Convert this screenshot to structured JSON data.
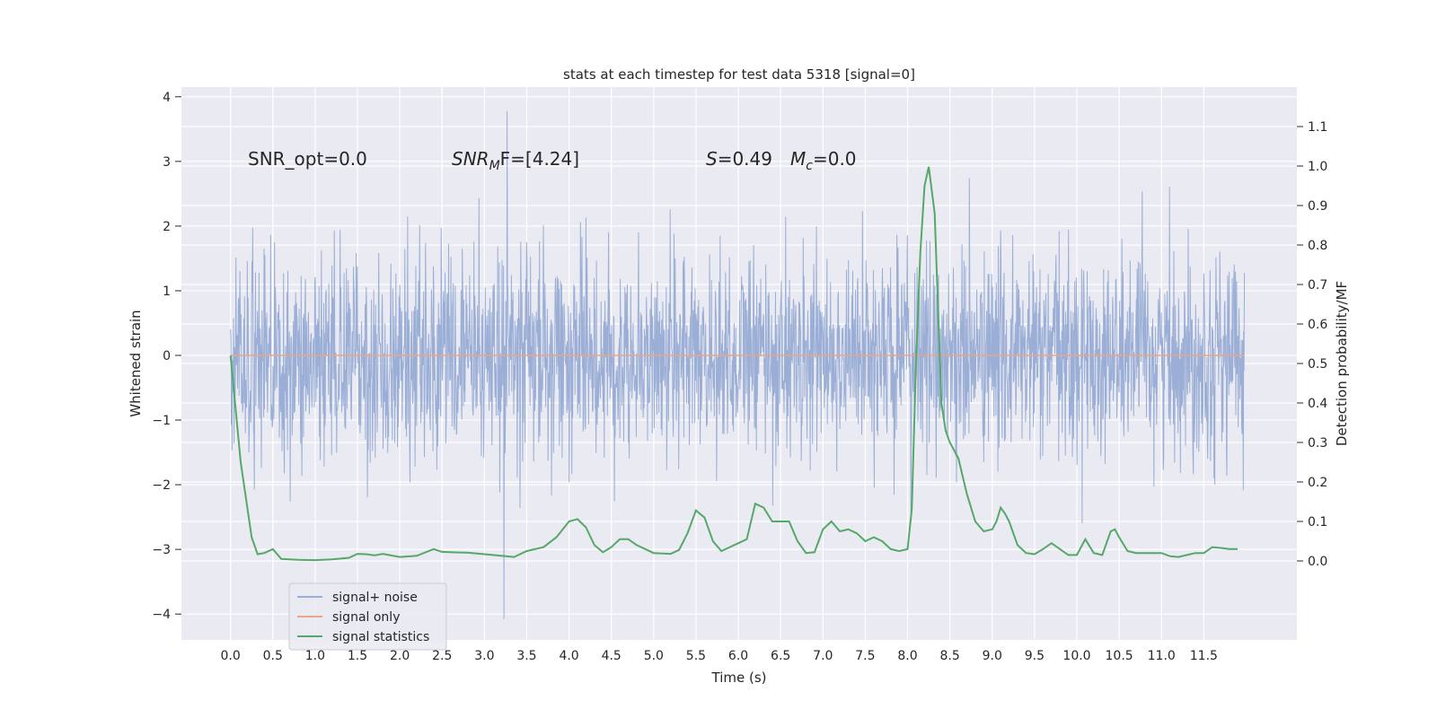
{
  "chart_data": {
    "type": "line",
    "title": "stats at each timestep for test data 5318 [signal=0]",
    "xlabel": "Time (s)",
    "ylabel_left": "Whitened strain",
    "ylabel_right": "Detection probability/MF",
    "xlim": [
      -0.58,
      12.6
    ],
    "ylim_left": [
      -4.4,
      4.15
    ],
    "ylim_right": [
      -0.2,
      1.2
    ],
    "x_ticks": [
      0.0,
      0.5,
      1.0,
      1.5,
      2.0,
      2.5,
      3.0,
      3.5,
      4.0,
      4.5,
      5.0,
      5.5,
      6.0,
      6.5,
      7.0,
      7.5,
      8.0,
      8.5,
      9.0,
      9.5,
      10.0,
      10.5,
      11.0,
      11.5
    ],
    "x_tick_labels": [
      "0.0",
      "0.5",
      "1.0",
      "1.5",
      "2.0",
      "2.5",
      "3.0",
      "3.5",
      "4.0",
      "4.5",
      "5.0",
      "5.5",
      "6.0",
      "6.5",
      "7.0",
      "7.5",
      "8.0",
      "8.5",
      "9.0",
      "9.5",
      "10.0",
      "10.5",
      "11.0",
      "11.5"
    ],
    "y_left_ticks": [
      -4,
      -3,
      -2,
      -1,
      0,
      1,
      2,
      3,
      4
    ],
    "y_left_tick_labels": [
      "−4",
      "−3",
      "−2",
      "−1",
      "0",
      "1",
      "2",
      "3",
      "4"
    ],
    "y_right_ticks": [
      0.0,
      0.1,
      0.2,
      0.3,
      0.4,
      0.5,
      0.6,
      0.7,
      0.8,
      0.9,
      1.0,
      1.1
    ],
    "y_right_tick_labels": [
      "0.0",
      "0.1",
      "0.2",
      "0.3",
      "0.4",
      "0.5",
      "0.6",
      "0.7",
      "0.8",
      "0.9",
      "1.0",
      "1.1"
    ],
    "annotations": {
      "snr_opt": "SNR_opt=0.0",
      "snr_mf_main": "SNR",
      "snr_mf_sub": "M",
      "snr_mf_rest": "F=[4.24]",
      "s_main": "S",
      "s_rest": "=0.49",
      "mc_main": "M",
      "mc_sub": "c",
      "mc_rest": "=0.0"
    },
    "legend": {
      "location": "lower-left",
      "entries": [
        {
          "label": "signal+ noise",
          "color": "#9aaed6"
        },
        {
          "label": "signal only",
          "color": "#e8a587"
        },
        {
          "label": "signal statistics",
          "color": "#55a868"
        }
      ]
    },
    "series": [
      {
        "name": "signal+ noise",
        "axis": "left",
        "kind": "noise",
        "t_start": 0.0,
        "t_end": 11.98,
        "rms": 0.78,
        "peak_max": 3.78,
        "peak_min": -4.08,
        "color": "#9aaed6"
      },
      {
        "name": "signal only",
        "axis": "left",
        "x": [
          0.0,
          11.98
        ],
        "y": [
          0.0,
          0.0
        ],
        "color": "#e8a587"
      },
      {
        "name": "signal statistics",
        "axis": "right",
        "color": "#55a868",
        "x": [
          0.0,
          0.12,
          0.25,
          0.32,
          0.4,
          0.5,
          0.6,
          0.8,
          1.0,
          1.2,
          1.4,
          1.5,
          1.6,
          1.7,
          1.8,
          2.0,
          2.2,
          2.4,
          2.5,
          2.6,
          2.8,
          3.0,
          3.2,
          3.35,
          3.5,
          3.7,
          3.85,
          4.0,
          4.1,
          4.2,
          4.3,
          4.4,
          4.5,
          4.6,
          4.7,
          4.8,
          5.0,
          5.2,
          5.3,
          5.4,
          5.5,
          5.6,
          5.7,
          5.8,
          5.9,
          6.0,
          6.1,
          6.2,
          6.3,
          6.4,
          6.5,
          6.6,
          6.7,
          6.8,
          6.9,
          7.0,
          7.1,
          7.2,
          7.3,
          7.4,
          7.5,
          7.6,
          7.7,
          7.8,
          7.9,
          8.0,
          8.05,
          8.1,
          8.15,
          8.2,
          8.25,
          8.32,
          8.4,
          8.45,
          8.5,
          8.6,
          8.7,
          8.8,
          8.9,
          9.0,
          9.05,
          9.1,
          9.15,
          9.2,
          9.3,
          9.4,
          9.5,
          9.6,
          9.7,
          9.8,
          9.9,
          10.0,
          10.1,
          10.2,
          10.3,
          10.4,
          10.45,
          10.5,
          10.6,
          10.7,
          10.8,
          11.0,
          11.1,
          11.2,
          11.3,
          11.4,
          11.5,
          11.6,
          11.7,
          11.8,
          11.9
        ],
        "y": [
          0.52,
          0.25,
          0.06,
          0.017,
          0.02,
          0.03,
          0.005,
          0.003,
          0.002,
          0.004,
          0.008,
          0.018,
          0.017,
          0.014,
          0.018,
          0.01,
          0.013,
          0.03,
          0.023,
          0.022,
          0.021,
          0.017,
          0.013,
          0.01,
          0.025,
          0.035,
          0.06,
          0.1,
          0.106,
          0.085,
          0.04,
          0.022,
          0.035,
          0.055,
          0.055,
          0.04,
          0.02,
          0.018,
          0.028,
          0.07,
          0.128,
          0.11,
          0.05,
          0.025,
          0.035,
          0.045,
          0.055,
          0.145,
          0.135,
          0.1,
          0.1,
          0.1,
          0.05,
          0.02,
          0.022,
          0.08,
          0.1,
          0.075,
          0.08,
          0.07,
          0.05,
          0.06,
          0.05,
          0.03,
          0.025,
          0.03,
          0.13,
          0.5,
          0.78,
          0.95,
          0.998,
          0.88,
          0.4,
          0.33,
          0.3,
          0.26,
          0.17,
          0.1,
          0.075,
          0.08,
          0.1,
          0.135,
          0.12,
          0.1,
          0.04,
          0.02,
          0.017,
          0.03,
          0.045,
          0.03,
          0.015,
          0.015,
          0.055,
          0.02,
          0.015,
          0.075,
          0.08,
          0.06,
          0.025,
          0.02,
          0.02,
          0.02,
          0.012,
          0.01,
          0.015,
          0.02,
          0.02,
          0.035,
          0.033,
          0.03,
          0.03
        ]
      }
    ]
  }
}
